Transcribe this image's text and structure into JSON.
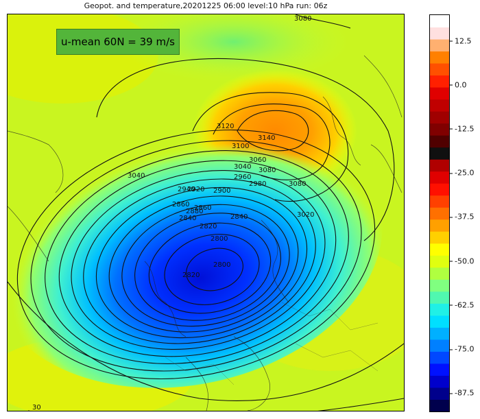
{
  "title": "Geopot. and temperature,20201225 06:00 level:10 hPa run: 06z",
  "annotation": "u-mean 60N = 39 m/s",
  "colorbar": {
    "ticks": [
      "12.5",
      "0.0",
      "-12.5",
      "-25.0",
      "-37.5",
      "-50.0",
      "-62.5",
      "-75.0",
      "-87.5"
    ],
    "tick_values": [
      12.5,
      0,
      -12.5,
      -25,
      -37.5,
      -50,
      -62.5,
      -75,
      -87.5
    ],
    "min": -92.5,
    "max": 20,
    "colors": [
      "#00004d",
      "#00008c",
      "#0000cc",
      "#0011ff",
      "#0048ff",
      "#0080ff",
      "#00b0ff",
      "#00dfff",
      "#20f0e6",
      "#50f8b0",
      "#80ff80",
      "#b0ff40",
      "#e0ff10",
      "#ffff00",
      "#ffd000",
      "#ffa000",
      "#ff7000",
      "#ff4000",
      "#ff1000",
      "#e00000",
      "#b00000",
      "#101010",
      "#500000",
      "#800000",
      "#a00000",
      "#c00000",
      "#e00000",
      "#ff2000",
      "#ff5000",
      "#ff8000",
      "#ffb070",
      "#ffe0e0",
      "#ffffff"
    ]
  },
  "contour_labels": [
    "3080",
    "3120",
    "3140",
    "3100",
    "3080",
    "3060",
    "3080",
    "3020",
    "3040",
    "2980",
    "2960",
    "2940",
    "2920",
    "2900",
    "2880",
    "2860",
    "2840",
    "2820",
    "2800",
    "2860",
    "2840",
    "2820",
    "2800",
    "3040",
    "30"
  ]
}
